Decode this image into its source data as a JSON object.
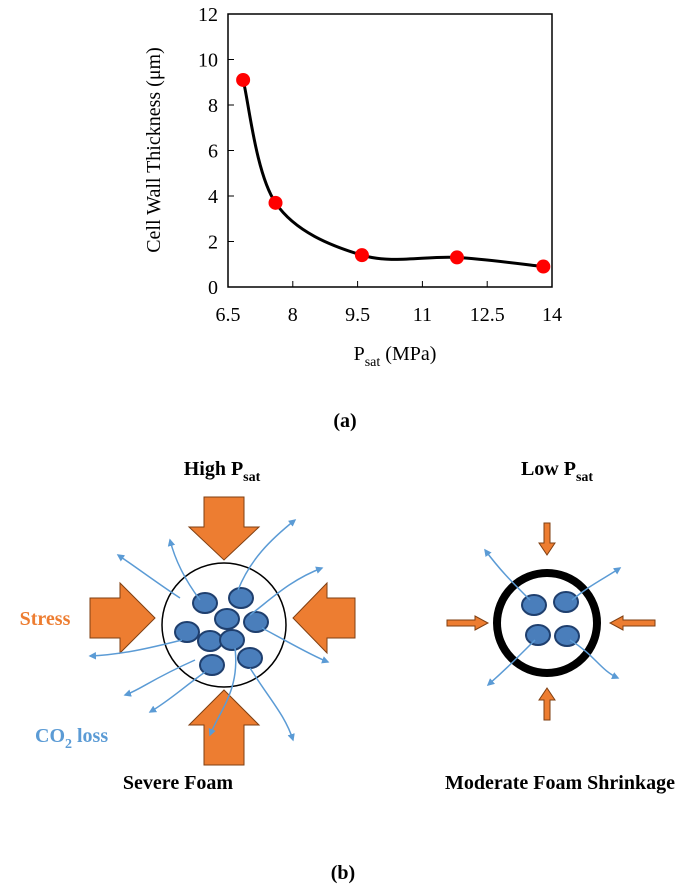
{
  "chart_data": {
    "type": "scatter",
    "x_label": [
      "P",
      "sat",
      " (MPa)"
    ],
    "y_label": "Cell Wall Thickness (μm)",
    "x": [
      6.85,
      7.6,
      9.6,
      11.8,
      13.8
    ],
    "values": [
      9.1,
      3.7,
      1.4,
      1.3,
      0.9
    ],
    "color": "#ff0000",
    "line_color": "#000000",
    "smooth": true,
    "xlim": [
      6.5,
      14
    ],
    "xticks": [
      6.5,
      8,
      9.5,
      11,
      12.5,
      14
    ],
    "ylim": [
      0,
      12
    ],
    "yticks": [
      0,
      2,
      4,
      6,
      8,
      10,
      12
    ]
  },
  "caption_a": "(a)",
  "diagram": {
    "left": {
      "title": [
        "High P",
        "sat"
      ],
      "caption": "Severe Foam"
    },
    "right": {
      "title": [
        "Low P",
        "sat"
      ],
      "caption": "Moderate Foam Shrinkage"
    },
    "stress_label": "Stress",
    "loss_label": [
      "CO",
      "2",
      " loss"
    ]
  },
  "caption_b": "(b)"
}
